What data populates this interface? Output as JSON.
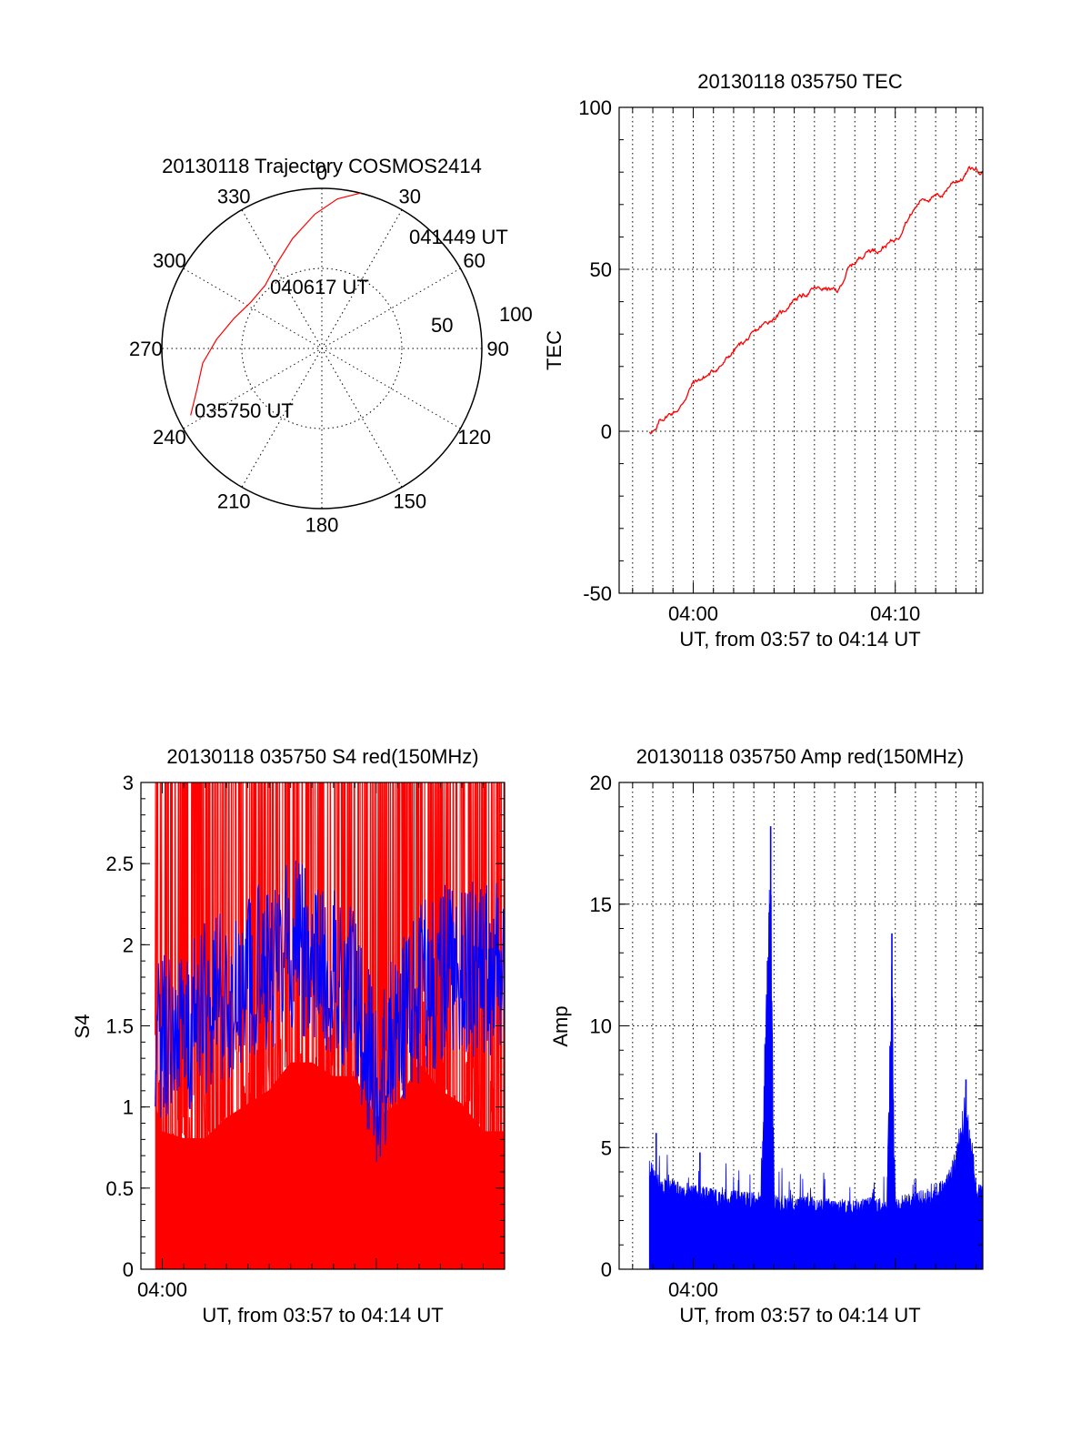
{
  "chart_data": [
    {
      "type": "polar",
      "title": "20130118 Trajectory COSMOS2414",
      "angle_labels": [
        "0",
        "30",
        "60",
        "90",
        "120",
        "150",
        "180",
        "210",
        "240",
        "270",
        "300",
        "330"
      ],
      "radial_labels": [
        "50",
        "100"
      ],
      "radial_range": [
        0,
        100
      ],
      "grid": true,
      "series": [
        {
          "color": "#ff0000",
          "points": [
            {
              "az": 243,
              "r": 92
            },
            {
              "az": 252,
              "r": 82
            },
            {
              "az": 263,
              "r": 75
            },
            {
              "az": 275,
              "r": 66
            },
            {
              "az": 289,
              "r": 58
            },
            {
              "az": 303,
              "r": 53
            },
            {
              "az": 318,
              "r": 53
            },
            {
              "az": 332,
              "r": 60
            },
            {
              "az": 345,
              "r": 71
            },
            {
              "az": 357,
              "r": 84
            },
            {
              "az": 6,
              "r": 94
            },
            {
              "az": 14,
              "r": 100
            }
          ]
        }
      ],
      "annotations": [
        {
          "text": "041449 UT",
          "az": 28,
          "r": 100
        },
        {
          "text": "040617 UT",
          "az": 349,
          "r": 80
        },
        {
          "text": "035750 UT",
          "az": 230,
          "r": 57
        }
      ]
    },
    {
      "type": "line",
      "title": "20130118 035750 TEC",
      "ylabel": "TEC",
      "xlabel": "UT, from 03:57 to 04:14 UT",
      "xlim": [
        "03:56:20",
        "04:14:20"
      ],
      "ylim": [
        -50,
        100
      ],
      "yticks": [
        -50,
        0,
        50,
        100
      ],
      "xtick_labels": [
        {
          "t": "04:00",
          "label": "04:00"
        },
        {
          "t": "04:10",
          "label": "04:10"
        }
      ],
      "grid": true,
      "series": [
        {
          "color": "#ff0000",
          "x": [
            "03:57:50",
            "03:58:10",
            "03:58:20",
            "03:58:45",
            "03:59:20",
            "03:59:40",
            "04:00:00",
            "04:00:40",
            "04:01:30",
            "04:02:10",
            "04:02:50",
            "04:03:30",
            "04:04:30",
            "04:05:00",
            "04:05:30",
            "04:06:00",
            "04:06:40",
            "04:07:10",
            "04:07:40",
            "04:08:10",
            "04:08:40",
            "04:09:10",
            "04:09:40",
            "04:10:10",
            "04:10:30",
            "04:10:40",
            "04:11:20",
            "04:11:50",
            "04:12:20",
            "04:12:50",
            "04:13:20",
            "04:13:40",
            "04:14:00",
            "04:14:20"
          ],
          "y": [
            0,
            0,
            3,
            5,
            7,
            11,
            15,
            17,
            21,
            26,
            29,
            33,
            37,
            41,
            42,
            44,
            44,
            43,
            50,
            53,
            56,
            56,
            58,
            60,
            65,
            66,
            72,
            72,
            73,
            77,
            78,
            81,
            81,
            80
          ]
        }
      ]
    },
    {
      "type": "line",
      "title": "20130118 035750 S4 red(150MHz)",
      "ylabel": "S4",
      "xlabel": "UT, from 03:57 to 04:14 UT",
      "xlim": [
        "03:59:00",
        "04:16:00"
      ],
      "ylim": [
        0,
        3
      ],
      "yticks": [
        "0",
        "0.5",
        "1",
        "1.5",
        "2",
        "2.5",
        "3"
      ],
      "xtick_labels": [
        {
          "t": "04:00",
          "label": "04:00"
        }
      ],
      "grid": false,
      "series": [
        {
          "color": "#ff0000",
          "x": [
            "03:59:40",
            "04:00:00",
            "04:01:00",
            "04:02:00",
            "04:03:00",
            "04:04:00",
            "04:05:00",
            "04:06:00",
            "04:07:00",
            "04:08:00",
            "04:09:00",
            "04:10:00",
            "04:11:00",
            "04:12:00",
            "04:13:00",
            "04:14:00",
            "04:15:00",
            "04:16:00"
          ],
          "y": [
            1.2,
            1.0,
            0.95,
            0.95,
            1.1,
            1.2,
            1.3,
            1.5,
            1.5,
            1.4,
            1.4,
            1.1,
            1.2,
            1.5,
            1.3,
            1.2,
            1.0,
            1.0
          ]
        },
        {
          "color": "#0000ff",
          "x": [
            "03:59:40",
            "04:00:00",
            "04:01:00",
            "04:02:00",
            "04:03:00",
            "04:04:00",
            "04:05:00",
            "04:06:00",
            "04:07:00",
            "04:08:00",
            "04:09:00",
            "04:10:00",
            "04:11:00",
            "04:12:00",
            "04:13:00",
            "04:14:00",
            "04:15:00",
            "04:16:00"
          ],
          "y": [
            1.3,
            1.4,
            1.5,
            1.6,
            1.7,
            1.8,
            1.9,
            2.0,
            1.9,
            1.8,
            1.7,
            1.1,
            1.5,
            1.7,
            1.8,
            1.9,
            1.8,
            1.9
          ]
        }
      ]
    },
    {
      "type": "line",
      "title": "20130118 035750 Amp red(150MHz)",
      "ylabel": "Amp",
      "xlabel": "UT, from 03:57 to 04:14 UT",
      "xlim": [
        "03:56:20",
        "04:14:20"
      ],
      "ylim": [
        0,
        20
      ],
      "yticks": [
        0,
        5,
        10,
        15,
        20
      ],
      "xtick_labels": [
        {
          "t": "04:00",
          "label": "04:00"
        }
      ],
      "grid": true,
      "series": [
        {
          "color": "#0000ff",
          "x": [
            "03:57:50",
            "03:58:30",
            "03:59:30",
            "04:00:30",
            "04:01:30",
            "04:02:30",
            "04:03:20",
            "04:03:50",
            "04:04:00",
            "04:04:10",
            "04:05:00",
            "04:06:00",
            "04:07:00",
            "04:08:00",
            "04:09:00",
            "04:09:35",
            "04:09:50",
            "04:10:00",
            "04:10:30",
            "04:11:30",
            "04:12:30",
            "04:13:00",
            "04:13:30",
            "04:14:00",
            "04:14:20"
          ],
          "y": [
            4.5,
            3.8,
            3.6,
            3.4,
            3.3,
            3.2,
            3.2,
            18.2,
            3.3,
            3.1,
            3.0,
            3.0,
            2.9,
            2.9,
            3.0,
            3.0,
            13.8,
            3.0,
            3.1,
            3.3,
            3.8,
            5.0,
            7.8,
            3.6,
            3.4
          ]
        }
      ]
    }
  ]
}
